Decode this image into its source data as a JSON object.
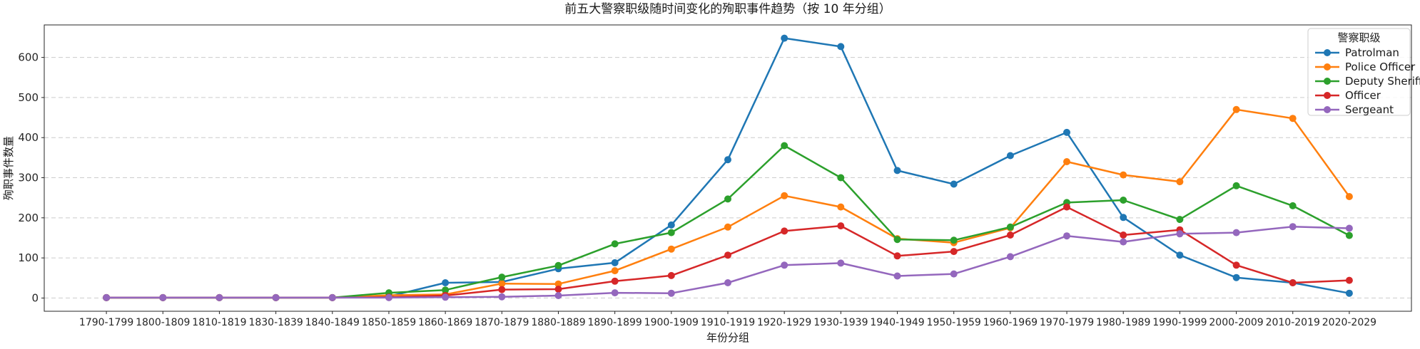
{
  "title": "前五大警察职级随时间变化的殉职事件趋势（按 10 年分组）",
  "legend": {
    "title": "警察职级",
    "entries": [
      "Patrolman",
      "Police Officer",
      "Deputy Sheriff",
      "Officer",
      "Sergeant"
    ]
  },
  "colors": {
    "patrolman": "#1f77b4",
    "police_officer": "#ff7f0e",
    "deputy_sheriff": "#2ca02c",
    "officer": "#d62728",
    "sergeant": "#9467bd",
    "grid": "#cccccc",
    "spine": "#262626"
  },
  "chart_data": {
    "type": "line",
    "title": "前五大警察职级随时间变化的殉职事件趋势（按 10 年分组）",
    "xlabel": "年份分组",
    "ylabel": "殉职事件数量",
    "legend_title": "警察职级",
    "legend_position": "top-right",
    "grid": "horizontal-dashed",
    "ylim": [
      -33,
      681
    ],
    "yticks": [
      0,
      100,
      200,
      300,
      400,
      500,
      600
    ],
    "categories": [
      "1790-1799",
      "1800-1809",
      "1810-1819",
      "1830-1839",
      "1840-1849",
      "1850-1859",
      "1860-1869",
      "1870-1879",
      "1880-1889",
      "1890-1899",
      "1900-1909",
      "1910-1919",
      "1920-1929",
      "1930-1939",
      "1940-1949",
      "1950-1959",
      "1960-1969",
      "1970-1979",
      "1980-1989",
      "1990-1999",
      "2000-2009",
      "2010-2019",
      "2020-2029"
    ],
    "series": [
      {
        "name": "Patrolman",
        "color": "#1f77b4",
        "values": [
          1,
          1,
          1,
          1,
          1,
          4,
          38,
          40,
          73,
          88,
          182,
          345,
          648,
          627,
          318,
          284,
          355,
          413,
          201,
          107,
          51,
          38,
          12
        ]
      },
      {
        "name": "Police Officer",
        "color": "#ff7f0e",
        "values": [
          1,
          1,
          1,
          1,
          1,
          7,
          9,
          36,
          35,
          68,
          122,
          177,
          255,
          227,
          148,
          138,
          175,
          340,
          307,
          290,
          470,
          448,
          253
        ]
      },
      {
        "name": "Deputy Sheriff",
        "color": "#2ca02c",
        "values": [
          1,
          1,
          1,
          1,
          1,
          13,
          20,
          52,
          81,
          135,
          163,
          247,
          380,
          300,
          146,
          144,
          177,
          238,
          244,
          196,
          280,
          230,
          156
        ]
      },
      {
        "name": "Officer",
        "color": "#d62728",
        "values": [
          1,
          1,
          1,
          1,
          1,
          2,
          6,
          21,
          22,
          42,
          56,
          107,
          167,
          180,
          105,
          116,
          157,
          227,
          157,
          170,
          82,
          38,
          44
        ]
      },
      {
        "name": "Sergeant",
        "color": "#9467bd",
        "values": [
          1,
          1,
          1,
          1,
          1,
          1,
          2,
          3,
          6,
          13,
          12,
          38,
          82,
          87,
          55,
          60,
          103,
          155,
          140,
          160,
          163,
          178,
          174
        ]
      }
    ]
  }
}
